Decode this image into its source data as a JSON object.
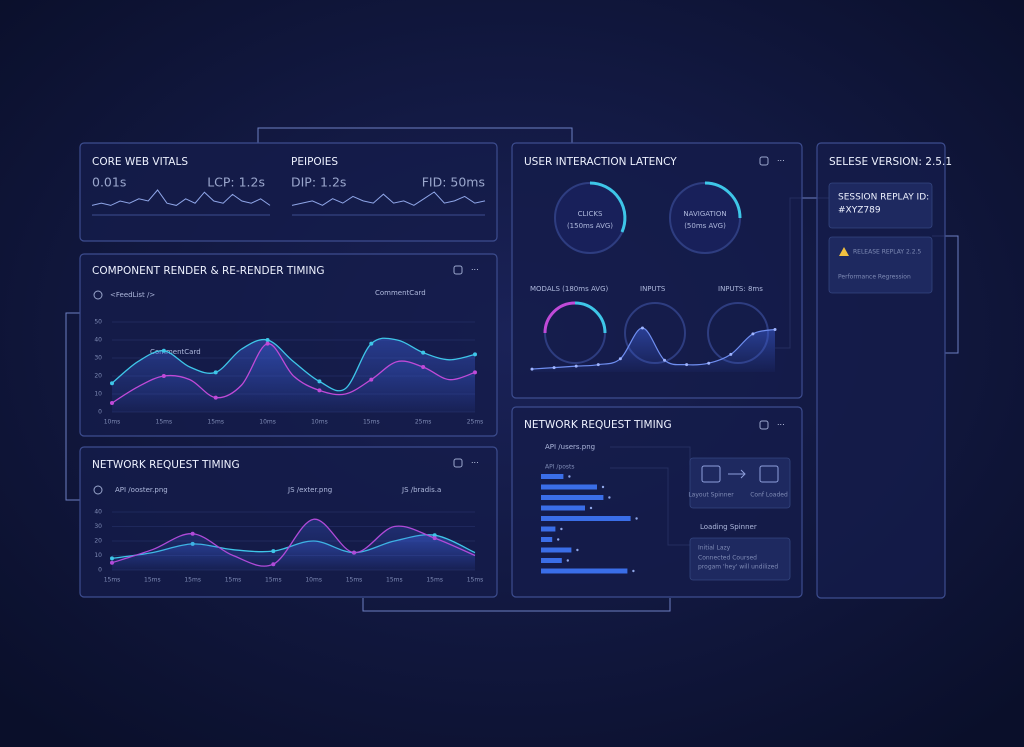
{
  "core_web_vitals": {
    "title": "CORE WEB VITALS",
    "left_metric": "0.01s",
    "right_metric": "LCP: 1.2s",
    "sparkline": {
      "type": "line",
      "values": [
        3,
        4,
        3,
        5,
        4,
        6,
        5,
        10,
        4,
        3,
        6,
        4,
        9,
        5,
        4,
        8,
        5,
        4,
        6,
        3
      ]
    }
  },
  "peipoies": {
    "title": "PEIPOIES",
    "left_metric": "DIP: 1.2s",
    "right_metric": "FID: 50ms",
    "sparkline": {
      "type": "line",
      "values": [
        3,
        4,
        5,
        3,
        6,
        4,
        7,
        5,
        4,
        8,
        4,
        5,
        3,
        6,
        9,
        4,
        5,
        7,
        4,
        5
      ]
    }
  },
  "component_render": {
    "title": "COMPONENT RENDER & RE-RENDER TIMING",
    "legend": "<FeedList />",
    "annotations": [
      "CommentCard",
      "CommentCard"
    ],
    "chart": {
      "type": "line",
      "categories": [
        "10ms",
        null,
        "15ms",
        null,
        "15ms",
        null,
        "10ms",
        null,
        "10ms",
        null,
        "15ms",
        null,
        "25ms",
        null,
        "25ms"
      ],
      "ylim": [
        0,
        50
      ],
      "yticks": [
        0,
        10,
        20,
        30,
        40,
        50
      ],
      "series": [
        {
          "color": "#3ec6e8",
          "values": [
            16,
            28,
            34,
            25,
            22,
            35,
            40,
            28,
            17,
            13,
            38,
            40,
            33,
            29,
            32
          ]
        },
        {
          "color": "#c04ad8",
          "values": [
            5,
            14,
            20,
            18,
            8,
            15,
            38,
            20,
            12,
            10,
            18,
            28,
            25,
            18,
            22
          ]
        }
      ]
    }
  },
  "network_left": {
    "title": "NETWORK REQUEST TIMING",
    "annotations": [
      "API /ooster.png",
      "JS /exter.png",
      "JS /bradis.a"
    ],
    "chart": {
      "type": "line",
      "categories": [
        "15ms",
        "15ms",
        "15ms",
        "15ms",
        "15ms",
        "10ms",
        "15ms",
        "15ms",
        "15ms",
        "15ms"
      ],
      "ylim": [
        0,
        40
      ],
      "yticks": [
        0,
        10,
        20,
        30,
        40
      ],
      "series": [
        {
          "color": "#3ec6e8",
          "values": [
            8,
            12,
            18,
            14,
            13,
            20,
            12,
            20,
            24,
            12
          ]
        },
        {
          "color": "#b04ad8",
          "values": [
            5,
            14,
            25,
            10,
            4,
            35,
            12,
            30,
            22,
            10
          ]
        }
      ]
    }
  },
  "user_interaction": {
    "title": "USER INTERACTION LATENCY",
    "gauges": [
      {
        "label": "CLICKS",
        "sub": "(150ms AVG)"
      },
      {
        "label": "NAVIGATION",
        "sub": "(50ms AVG)"
      }
    ],
    "row_labels": [
      "MODALS (180ms AVG)",
      "INPUTS",
      "INPUTS: 8ms"
    ],
    "area": {
      "type": "area",
      "values": [
        2,
        3,
        4,
        5,
        9,
        30,
        8,
        5,
        6,
        12,
        26,
        29
      ]
    }
  },
  "network_right": {
    "title": "NETWORK REQUEST TIMING",
    "labels": [
      "API /users.png",
      "API /posts"
    ],
    "bars": {
      "type": "bar",
      "color": "#3a6ee8",
      "values": [
        28,
        70,
        78,
        55,
        112,
        18,
        14,
        38,
        26,
        108
      ]
    },
    "card_labels": [
      "Layout Spinner",
      "Conf Loaded"
    ],
    "loading": "Loading Spinner",
    "notes": [
      "Initial Lazy",
      "Connected Coursed",
      "progam 'hey' will undilized"
    ]
  },
  "side_panel": {
    "version": "SELESE VERSION: 2.5.1",
    "session_label": "SESSION REPLAY ID:",
    "session_id": "#XYZ789",
    "release": "RELEASE REPLAY 2.2.5",
    "regression": "Performance Regression"
  }
}
